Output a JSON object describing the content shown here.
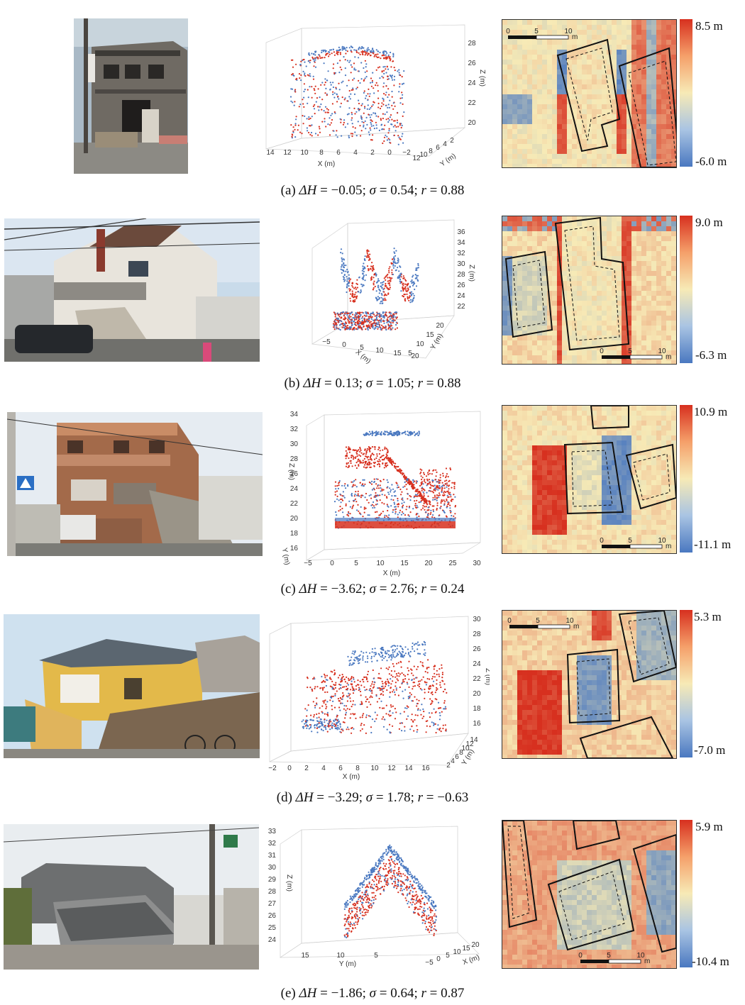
{
  "panels": [
    {
      "id": "a",
      "caption": {
        "label": "(a)",
        "dH": "−0.05",
        "sigma": "0.54",
        "r": "0.88"
      },
      "colorbar": {
        "max": "8.5 m",
        "min": "-6.0 m"
      },
      "plot": {
        "x_label": "X (m)",
        "y_label": "Y (m)",
        "z_label": "Z (m)",
        "x_ticks": [
          "14",
          "12",
          "10",
          "8",
          "6",
          "4",
          "2",
          "0",
          "−2"
        ],
        "y_ticks": [
          "12",
          "10",
          "8",
          "6",
          "4",
          "2"
        ],
        "z_ticks": [
          "28",
          "26",
          "24",
          "22",
          "20"
        ]
      },
      "scalebar": {
        "ticks": [
          "0",
          "5",
          "10"
        ],
        "unit": "m"
      }
    },
    {
      "id": "b",
      "caption": {
        "label": "(b)",
        "dH": "0.13",
        "sigma": "1.05",
        "r": "0.88"
      },
      "colorbar": {
        "max": "9.0 m",
        "min": "-6.3 m"
      },
      "plot": {
        "x_label": "X (m)",
        "y_label": "Y (m)",
        "z_label": "Z (m)",
        "x_ticks": [
          "−5",
          "0",
          "5",
          "10",
          "15",
          "20"
        ],
        "y_ticks": [
          "5",
          "10",
          "15",
          "20"
        ],
        "z_ticks": [
          "36",
          "34",
          "32",
          "30",
          "28",
          "26",
          "24",
          "22"
        ]
      },
      "scalebar": {
        "ticks": [
          "0",
          "5",
          "10"
        ],
        "unit": "m"
      }
    },
    {
      "id": "c",
      "caption": {
        "label": "(c)",
        "dH": "−3.62",
        "sigma": "2.76",
        "r": "0.24"
      },
      "colorbar": {
        "max": "10.9 m",
        "min": "-11.1 m"
      },
      "plot": {
        "x_label": "X (m)",
        "y_label": "Y (m)",
        "z_label": "Z (m)",
        "x_ticks": [
          "−5",
          "0",
          "5",
          "10",
          "15",
          "20",
          "25",
          "30"
        ],
        "z_ticks": [
          "34",
          "32",
          "30",
          "28",
          "26",
          "24",
          "22",
          "20",
          "18",
          "16"
        ]
      },
      "scalebar": {
        "ticks": [
          "0",
          "5",
          "10"
        ],
        "unit": "m"
      }
    },
    {
      "id": "d",
      "caption": {
        "label": "(d)",
        "dH": "−3.29",
        "sigma": "1.78",
        "r": "−0.63"
      },
      "colorbar": {
        "max": "5.3 m",
        "min": "-7.0 m"
      },
      "plot": {
        "x_label": "X (m)",
        "y_label": "Y (m)",
        "z_label": "Z (m)",
        "x_ticks": [
          "−2",
          "0",
          "2",
          "4",
          "6",
          "8",
          "10",
          "12",
          "14",
          "16"
        ],
        "y_ticks": [
          "2",
          "4",
          "6",
          "8",
          "10",
          "12",
          "14"
        ],
        "z_ticks": [
          "30",
          "28",
          "26",
          "24",
          "22",
          "20",
          "18",
          "16"
        ]
      },
      "scalebar": {
        "ticks": [
          "0",
          "5",
          "10"
        ],
        "unit": "m"
      }
    },
    {
      "id": "e",
      "caption": {
        "label": "(e)",
        "dH": "−1.86",
        "sigma": "0.64",
        "r": "0.87"
      },
      "colorbar": {
        "max": "5.9 m",
        "min": "-10.4 m"
      },
      "plot": {
        "x_label": "X (m)",
        "y_label": "Y (m)",
        "z_label": "Z (m)",
        "y_ticks": [
          "15",
          "10",
          "5"
        ],
        "x_ticks": [
          "−5",
          "0",
          "5",
          "10",
          "15",
          "20"
        ],
        "z_ticks": [
          "33",
          "32",
          "31",
          "30",
          "29",
          "28",
          "27",
          "26",
          "25",
          "24"
        ]
      },
      "scalebar": {
        "ticks": [
          "0",
          "5",
          "10"
        ],
        "unit": "m"
      }
    }
  ],
  "caption_symbols": {
    "dH": "ΔH",
    "sigma": "σ",
    "r": "r",
    "eq": " = ",
    "sep": "; "
  },
  "colors": {
    "increase": "#d7301f",
    "decrease": "#4a78c0",
    "neutral": "#f7eab6"
  }
}
